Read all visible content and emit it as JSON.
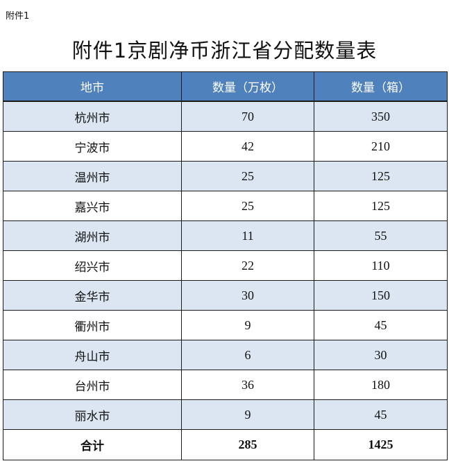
{
  "attachment_label": "附件1",
  "title": "附件1京剧净币浙江省分配数量表",
  "colors": {
    "header_bg": "#4f81bd",
    "header_text": "#ffffff",
    "row_shade": "#dce6f2",
    "row_plain": "#ffffff",
    "border": "#1a1a1a"
  },
  "table": {
    "headers": [
      "地市",
      "数量（万枚）",
      "数量（箱）"
    ],
    "rows": [
      {
        "city": "杭州市",
        "coins_10k": "70",
        "boxes": "350"
      },
      {
        "city": "宁波市",
        "coins_10k": "42",
        "boxes": "210"
      },
      {
        "city": "温州市",
        "coins_10k": "25",
        "boxes": "125"
      },
      {
        "city": "嘉兴市",
        "coins_10k": "25",
        "boxes": "125"
      },
      {
        "city": "湖州市",
        "coins_10k": "11",
        "boxes": "55"
      },
      {
        "city": "绍兴市",
        "coins_10k": "22",
        "boxes": "110"
      },
      {
        "city": "金华市",
        "coins_10k": "30",
        "boxes": "150"
      },
      {
        "city": "衢州市",
        "coins_10k": "9",
        "boxes": "45"
      },
      {
        "city": "舟山市",
        "coins_10k": "6",
        "boxes": "30"
      },
      {
        "city": "台州市",
        "coins_10k": "36",
        "boxes": "180"
      },
      {
        "city": "丽水市",
        "coins_10k": "9",
        "boxes": "45"
      }
    ],
    "total": {
      "label": "合计",
      "coins_10k": "285",
      "boxes": "1425"
    }
  }
}
